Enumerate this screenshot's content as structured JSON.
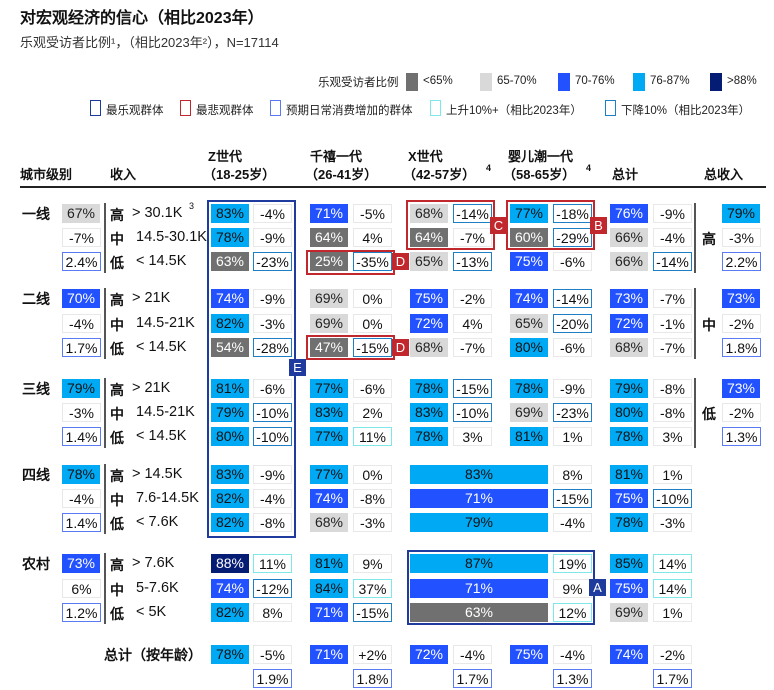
{
  "title": "对宏观经济的信心（相比2023年）",
  "subtitle": "乐观受访者比例¹，（相比2023年²），N=17114",
  "legend": {
    "fill_title": "乐观受访者比例",
    "fills": [
      {
        "key": "lt65",
        "label": "<65%",
        "color": "#707070",
        "text": "#ffffff"
      },
      {
        "key": "65_70",
        "label": "65-70%",
        "color": "#d9d9d9",
        "text": "#222222"
      },
      {
        "key": "70_76",
        "label": "70-76%",
        "color": "#2251ff",
        "text": "#ffffff"
      },
      {
        "key": "76_87",
        "label": "76-87%",
        "color": "#00a9f4",
        "text": "#111111"
      },
      {
        "key": "gt88",
        "label": ">88%",
        "color": "#051c75",
        "text": "#ffffff"
      }
    ],
    "outlines": [
      {
        "key": "most_optimistic",
        "label": "最乐观群体",
        "color": "#203b9e"
      },
      {
        "key": "most_pessimistic",
        "label": "最悲观群体",
        "color": "#c0282d"
      },
      {
        "key": "spend_increase",
        "label": "预期日常消费增加的群体",
        "color": "#5b7bf5"
      },
      {
        "key": "up",
        "label": "上升10%+（相比2023年）",
        "color": "#7ee8e8"
      },
      {
        "key": "down",
        "label": "下降10%（相比2023年）",
        "color": "#1f7fc4"
      }
    ]
  },
  "headers": {
    "tier": "城市级别",
    "income": "收入",
    "z": {
      "l1": "Z世代",
      "l2": "（18-25岁）",
      "sup": ""
    },
    "m": {
      "l1": "千禧一代",
      "l2": "（26-41岁）",
      "sup": ""
    },
    "x": {
      "l1": "X世代",
      "l2": "（42-57岁）",
      "sup": "4"
    },
    "b": {
      "l1": "婴儿潮一代",
      "l2": "（58-65岁）",
      "sup": "4"
    },
    "total": "总计",
    "total_income": "总收入"
  },
  "tiers": [
    {
      "name": "一线",
      "pct": "67%",
      "fill": "65_70",
      "change": "-7%",
      "share": "2.4%",
      "rows": [
        {
          "level": "高",
          "range": "> 30.1K",
          "sup": "3",
          "z": [
            "83%",
            "76_87",
            "-4%",
            ""
          ],
          "m": [
            "71%",
            "70_76",
            "-5%",
            ""
          ],
          "x": [
            "68%",
            "65_70",
            "-14%",
            "down"
          ],
          "b": [
            "77%",
            "76_87",
            "-18%",
            "down"
          ],
          "t": [
            "76%",
            "70_76",
            "-9%",
            ""
          ]
        },
        {
          "level": "中",
          "range": "14.5-30.1K",
          "sup": "",
          "z": [
            "78%",
            "76_87",
            "-9%",
            ""
          ],
          "m": [
            "64%",
            "lt65",
            "4%",
            ""
          ],
          "x": [
            "64%",
            "lt65",
            "-7%",
            ""
          ],
          "b": [
            "60%",
            "lt65",
            "-29%",
            "down"
          ],
          "t": [
            "66%",
            "65_70",
            "-4%",
            ""
          ]
        },
        {
          "level": "低",
          "range": "< 14.5K",
          "sup": "",
          "z": [
            "63%",
            "lt65",
            "-23%",
            "down"
          ],
          "m": [
            "25%",
            "lt65",
            "-35%",
            "down"
          ],
          "x": [
            "65%",
            "65_70",
            "-13%",
            "down"
          ],
          "b": [
            "75%",
            "70_76",
            "-6%",
            ""
          ],
          "t": [
            "66%",
            "65_70",
            "-14%",
            "down"
          ]
        }
      ]
    },
    {
      "name": "二线",
      "pct": "70%",
      "fill": "70_76",
      "change": "-4%",
      "share": "1.7%",
      "rows": [
        {
          "level": "高",
          "range": "> 21K",
          "sup": "",
          "z": [
            "74%",
            "70_76",
            "-9%",
            ""
          ],
          "m": [
            "69%",
            "65_70",
            "0%",
            ""
          ],
          "x": [
            "75%",
            "70_76",
            "-2%",
            ""
          ],
          "b": [
            "74%",
            "70_76",
            "-14%",
            "down"
          ],
          "t": [
            "73%",
            "70_76",
            "-7%",
            ""
          ]
        },
        {
          "level": "中",
          "range": "14.5-21K",
          "sup": "",
          "z": [
            "82%",
            "76_87",
            "-3%",
            ""
          ],
          "m": [
            "69%",
            "65_70",
            "0%",
            ""
          ],
          "x": [
            "72%",
            "70_76",
            "4%",
            ""
          ],
          "b": [
            "65%",
            "65_70",
            "-20%",
            "down"
          ],
          "t": [
            "72%",
            "70_76",
            "-1%",
            ""
          ]
        },
        {
          "level": "低",
          "range": "< 14.5K",
          "sup": "",
          "z": [
            "54%",
            "lt65",
            "-28%",
            "down"
          ],
          "m": [
            "47%",
            "lt65",
            "-15%",
            "down"
          ],
          "x": [
            "68%",
            "65_70",
            "-7%",
            ""
          ],
          "b": [
            "80%",
            "76_87",
            "-6%",
            ""
          ],
          "t": [
            "68%",
            "65_70",
            "-7%",
            ""
          ]
        }
      ]
    },
    {
      "name": "三线",
      "pct": "79%",
      "fill": "76_87",
      "change": "-3%",
      "share": "1.4%",
      "rows": [
        {
          "level": "高",
          "range": "> 21K",
          "sup": "",
          "z": [
            "81%",
            "76_87",
            "-6%",
            ""
          ],
          "m": [
            "77%",
            "76_87",
            "-6%",
            ""
          ],
          "x": [
            "78%",
            "76_87",
            "-15%",
            "down"
          ],
          "b": [
            "78%",
            "76_87",
            "-9%",
            ""
          ],
          "t": [
            "79%",
            "76_87",
            "-8%",
            ""
          ]
        },
        {
          "level": "中",
          "range": "14.5-21K",
          "sup": "",
          "z": [
            "79%",
            "76_87",
            "-10%",
            "down"
          ],
          "m": [
            "83%",
            "76_87",
            "2%",
            ""
          ],
          "x": [
            "83%",
            "76_87",
            "-10%",
            "down"
          ],
          "b": [
            "69%",
            "65_70",
            "-23%",
            "down"
          ],
          "t": [
            "80%",
            "76_87",
            "-8%",
            ""
          ]
        },
        {
          "level": "低",
          "range": "< 14.5K",
          "sup": "",
          "z": [
            "80%",
            "76_87",
            "-10%",
            "down"
          ],
          "m": [
            "77%",
            "76_87",
            "11%",
            "up"
          ],
          "x": [
            "78%",
            "76_87",
            "3%",
            ""
          ],
          "b": [
            "81%",
            "76_87",
            "1%",
            ""
          ],
          "t": [
            "78%",
            "76_87",
            "3%",
            ""
          ]
        }
      ]
    },
    {
      "name": "四线",
      "pct": "78%",
      "fill": "76_87",
      "change": "-4%",
      "share": "1.4%",
      "rows": [
        {
          "level": "高",
          "range": "> 14.5K",
          "sup": "",
          "z": [
            "83%",
            "76_87",
            "-9%",
            ""
          ],
          "m": [
            "77%",
            "76_87",
            "0%",
            ""
          ],
          "xb": [
            "83%",
            "76_87",
            "8%",
            ""
          ],
          "t": [
            "81%",
            "76_87",
            "1%",
            ""
          ]
        },
        {
          "level": "中",
          "range": "7.6-14.5K",
          "sup": "",
          "z": [
            "82%",
            "76_87",
            "-4%",
            ""
          ],
          "m": [
            "74%",
            "70_76",
            "-8%",
            ""
          ],
          "xb": [
            "71%",
            "70_76",
            "-15%",
            "down"
          ],
          "t": [
            "75%",
            "70_76",
            "-10%",
            "down"
          ]
        },
        {
          "level": "低",
          "range": "< 7.6K",
          "sup": "",
          "z": [
            "82%",
            "76_87",
            "-8%",
            ""
          ],
          "m": [
            "68%",
            "65_70",
            "-3%",
            ""
          ],
          "xb": [
            "79%",
            "76_87",
            "-4%",
            ""
          ],
          "t": [
            "78%",
            "76_87",
            "-3%",
            ""
          ]
        }
      ]
    },
    {
      "name": "农村",
      "pct": "73%",
      "fill": "70_76",
      "change": "6%",
      "share": "1.2%",
      "rows": [
        {
          "level": "高",
          "range": "> 7.6K",
          "sup": "",
          "z": [
            "88%",
            "gt88",
            "11%",
            "up"
          ],
          "m": [
            "81%",
            "76_87",
            "9%",
            ""
          ],
          "xb": [
            "87%",
            "76_87",
            "19%",
            "up"
          ],
          "t": [
            "85%",
            "76_87",
            "14%",
            "up"
          ]
        },
        {
          "level": "中",
          "range": "5-7.6K",
          "sup": "",
          "z": [
            "74%",
            "70_76",
            "-12%",
            "down"
          ],
          "m": [
            "84%",
            "76_87",
            "37%",
            "up"
          ],
          "xb": [
            "71%",
            "70_76",
            "9%",
            ""
          ],
          "t": [
            "75%",
            "70_76",
            "14%",
            "up"
          ]
        },
        {
          "level": "低",
          "range": "< 5K",
          "sup": "",
          "z": [
            "82%",
            "76_87",
            "8%",
            ""
          ],
          "m": [
            "71%",
            "70_76",
            "-15%",
            "down"
          ],
          "xb": [
            "63%",
            "lt65",
            "12%",
            "up"
          ],
          "t": [
            "69%",
            "65_70",
            "1%",
            ""
          ]
        }
      ]
    }
  ],
  "total_income": [
    {
      "level": "高",
      "pct": "79%",
      "fill": "76_87",
      "change": "-3%",
      "share": "2.2%"
    },
    {
      "level": "中",
      "pct": "73%",
      "fill": "70_76",
      "change": "-2%",
      "share": "1.8%"
    },
    {
      "level": "低",
      "pct": "73%",
      "fill": "70_76",
      "change": "-2%",
      "share": "1.3%"
    }
  ],
  "total_by_age": {
    "label": "总计（按年龄）",
    "z": [
      "78%",
      "76_87",
      "-5%",
      "1.9%"
    ],
    "m": [
      "71%",
      "70_76",
      "+2%",
      "1.8%"
    ],
    "x": [
      "72%",
      "70_76",
      "-4%",
      "1.7%"
    ],
    "b": [
      "75%",
      "70_76",
      "-4%",
      "1.3%"
    ],
    "t": [
      "74%",
      "70_76",
      "-2%",
      "1.7%"
    ]
  },
  "callouts": [
    {
      "label": "E",
      "group": "most_optimistic"
    },
    {
      "label": "D",
      "group": "most_pessimistic"
    },
    {
      "label": "D",
      "group": "most_pessimistic"
    },
    {
      "label": "C",
      "group": "most_pessimistic"
    },
    {
      "label": "B",
      "group": "most_pessimistic"
    },
    {
      "label": "A",
      "group": "most_optimistic"
    }
  ]
}
